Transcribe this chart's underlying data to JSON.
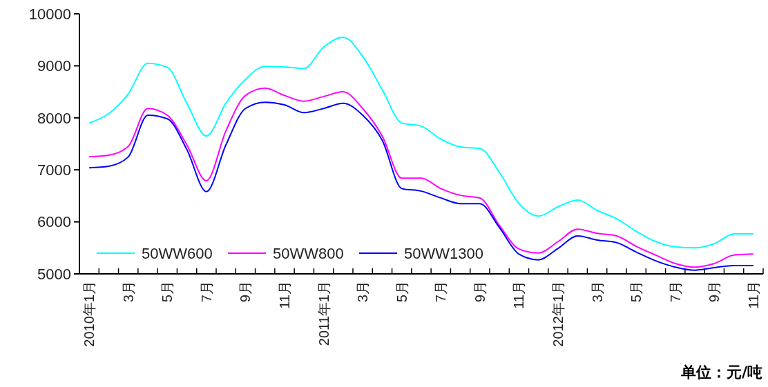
{
  "chart_data": {
    "type": "line",
    "categories": [
      "2010年1月",
      null,
      "3月",
      null,
      "5月",
      null,
      "7月",
      null,
      "9月",
      null,
      "11月",
      null,
      "2011年1月",
      null,
      "3月",
      null,
      "5月",
      null,
      "7月",
      null,
      "9月",
      null,
      "11月",
      null,
      "2012年1月",
      null,
      "3月",
      null,
      "5月",
      null,
      "7月",
      null,
      "9月",
      null,
      "11月"
    ],
    "series": [
      {
        "name": "50WW600",
        "color": "#00ffff",
        "values": [
          7900,
          8080,
          8460,
          9050,
          8970,
          8280,
          7650,
          8280,
          8740,
          8990,
          8980,
          8950,
          9360,
          9550,
          9180,
          8540,
          7900,
          7840,
          7590,
          7440,
          7410,
          6950,
          6350,
          6110,
          6290,
          6420,
          6220,
          6060,
          5820,
          5620,
          5520,
          5500,
          5580,
          5770,
          5770
        ]
      },
      {
        "name": "50WW800",
        "color": "#ff00ff",
        "values": [
          7250,
          7280,
          7450,
          8180,
          8050,
          7480,
          6790,
          7750,
          8430,
          8570,
          8430,
          8320,
          8410,
          8500,
          8180,
          7650,
          6840,
          6840,
          6640,
          6510,
          6460,
          5930,
          5480,
          5400,
          5620,
          5860,
          5780,
          5730,
          5530,
          5360,
          5200,
          5130,
          5200,
          5360,
          5380
        ]
      },
      {
        "name": "50WW1300",
        "color": "#0000ff",
        "values": [
          7040,
          7070,
          7250,
          8050,
          7980,
          7390,
          6580,
          7480,
          8180,
          8300,
          8250,
          8100,
          8180,
          8280,
          8050,
          7570,
          6640,
          6590,
          6460,
          6350,
          6350,
          5890,
          5380,
          5270,
          5490,
          5730,
          5650,
          5600,
          5420,
          5250,
          5130,
          5070,
          5120,
          5160,
          5160
        ]
      }
    ],
    "ylim": [
      5000,
      10000
    ],
    "yticks": [
      5000,
      6000,
      7000,
      8000,
      9000,
      10000
    ],
    "grid": false,
    "legend": "bottom",
    "marker": "none",
    "line_style": "solid",
    "annotations": [
      "单位：元/吨"
    ]
  }
}
